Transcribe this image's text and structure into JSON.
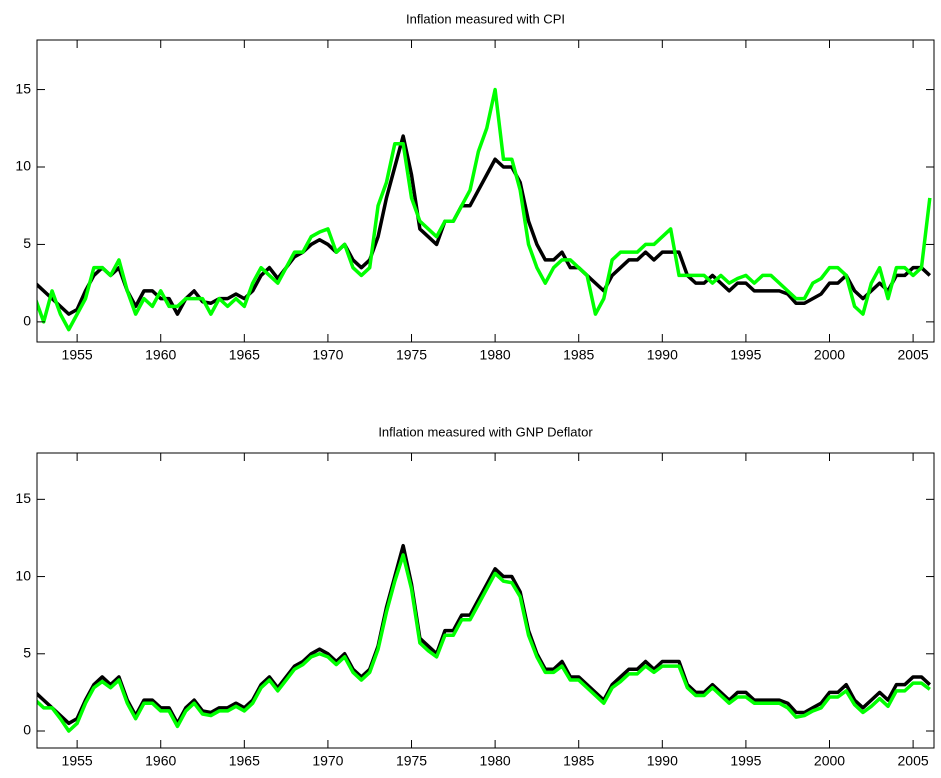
{
  "chart_data": [
    {
      "type": "line",
      "title": "Inflation measured with CPI",
      "x": [
        1952.5,
        1953,
        1953.5,
        1954,
        1954.5,
        1955,
        1955.5,
        1956,
        1956.5,
        1957,
        1957.5,
        1958,
        1958.5,
        1959,
        1959.5,
        1960,
        1960.5,
        1961,
        1961.5,
        1962,
        1962.5,
        1963,
        1963.5,
        1964,
        1964.5,
        1965,
        1965.5,
        1966,
        1966.5,
        1967,
        1967.5,
        1968,
        1968.5,
        1969,
        1969.5,
        1970,
        1970.5,
        1971,
        1971.5,
        1972,
        1972.5,
        1973,
        1973.5,
        1974,
        1974.5,
        1975,
        1975.5,
        1976,
        1976.5,
        1977,
        1977.5,
        1978,
        1978.5,
        1979,
        1979.5,
        1980,
        1980.5,
        1981,
        1981.5,
        1982,
        1982.5,
        1983,
        1983.5,
        1984,
        1984.5,
        1985,
        1985.5,
        1986,
        1986.5,
        1987,
        1987.5,
        1988,
        1988.5,
        1989,
        1989.5,
        1990,
        1990.5,
        1991,
        1991.5,
        1992,
        1992.5,
        1993,
        1993.5,
        1994,
        1994.5,
        1995,
        1995.5,
        1996,
        1996.5,
        1997,
        1997.5,
        1998,
        1998.5,
        1999,
        1999.5,
        2000,
        2000.5,
        2001,
        2001.5,
        2002,
        2002.5,
        2003,
        2003.5,
        2004,
        2004.5,
        2005,
        2005.5,
        2006
      ],
      "series": [
        {
          "color": "#000000",
          "values": [
            2.5,
            2.0,
            1.5,
            1.0,
            0.5,
            0.8,
            2.0,
            3.0,
            3.5,
            3.0,
            3.5,
            2.0,
            1.0,
            2.0,
            2.0,
            1.5,
            1.5,
            0.5,
            1.5,
            2.0,
            1.3,
            1.2,
            1.5,
            1.5,
            1.8,
            1.5,
            2.0,
            3.0,
            3.5,
            2.8,
            3.5,
            4.2,
            4.5,
            5.0,
            5.3,
            5.0,
            4.5,
            5.0,
            4.0,
            3.5,
            4.0,
            5.5,
            8.0,
            10.0,
            12.0,
            9.5,
            6.0,
            5.5,
            5.0,
            6.5,
            6.5,
            7.5,
            7.5,
            8.5,
            9.5,
            10.5,
            10.0,
            10.0,
            9.0,
            6.5,
            5.0,
            4.0,
            4.0,
            4.5,
            3.5,
            3.5,
            3.0,
            2.5,
            2.0,
            3.0,
            3.5,
            4.0,
            4.0,
            4.5,
            4.0,
            4.5,
            4.5,
            4.5,
            3.0,
            2.5,
            2.5,
            3.0,
            2.5,
            2.0,
            2.5,
            2.5,
            2.0,
            2.0,
            2.0,
            2.0,
            1.8,
            1.2,
            1.2,
            1.5,
            1.8,
            2.5,
            2.5,
            3.0,
            2.0,
            1.5,
            2.0,
            2.5,
            2.0,
            3.0,
            3.0,
            3.5,
            3.5,
            3.0
          ]
        },
        {
          "color": "#00ff00",
          "values": [
            1.5,
            0.0,
            2.0,
            0.5,
            -0.5,
            0.5,
            1.5,
            3.5,
            3.5,
            3.0,
            4.0,
            2.0,
            0.5,
            1.5,
            1.0,
            2.0,
            1.0,
            1.0,
            1.5,
            1.5,
            1.5,
            0.5,
            1.5,
            1.0,
            1.5,
            1.0,
            2.5,
            3.5,
            3.0,
            2.5,
            3.5,
            4.5,
            4.5,
            5.5,
            5.8,
            6.0,
            4.5,
            5.0,
            3.5,
            3.0,
            3.5,
            7.5,
            9.0,
            11.5,
            11.5,
            8.0,
            6.5,
            6.0,
            5.5,
            6.5,
            6.5,
            7.5,
            8.5,
            11.0,
            12.5,
            15.0,
            10.5,
            10.5,
            8.5,
            5.0,
            3.5,
            2.5,
            3.5,
            4.0,
            4.0,
            3.5,
            3.0,
            0.5,
            1.5,
            4.0,
            4.5,
            4.5,
            4.5,
            5.0,
            5.0,
            5.5,
            6.0,
            3.0,
            3.0,
            3.0,
            3.0,
            2.5,
            3.0,
            2.5,
            2.8,
            3.0,
            2.5,
            3.0,
            3.0,
            2.5,
            2.0,
            1.5,
            1.5,
            2.5,
            2.8,
            3.5,
            3.5,
            3.0,
            1.0,
            0.5,
            2.5,
            3.5,
            1.5,
            3.5,
            3.5,
            3.0,
            3.5,
            8.0
          ]
        }
      ],
      "xlim": [
        1952.6,
        2006.25
      ],
      "xticks": [
        1955,
        1960,
        1965,
        1970,
        1975,
        1980,
        1985,
        1990,
        1995,
        2000,
        2005
      ],
      "ylim": [
        -1.3,
        18.2
      ],
      "yticks": [
        0,
        5,
        10,
        15
      ],
      "grid": false
    },
    {
      "type": "line",
      "title": "Inflation measured with GNP Deflator",
      "x": [
        1952.5,
        1953,
        1953.5,
        1954,
        1954.5,
        1955,
        1955.5,
        1956,
        1956.5,
        1957,
        1957.5,
        1958,
        1958.5,
        1959,
        1959.5,
        1960,
        1960.5,
        1961,
        1961.5,
        1962,
        1962.5,
        1963,
        1963.5,
        1964,
        1964.5,
        1965,
        1965.5,
        1966,
        1966.5,
        1967,
        1967.5,
        1968,
        1968.5,
        1969,
        1969.5,
        1970,
        1970.5,
        1971,
        1971.5,
        1972,
        1972.5,
        1973,
        1973.5,
        1974,
        1974.5,
        1975,
        1975.5,
        1976,
        1976.5,
        1977,
        1977.5,
        1978,
        1978.5,
        1979,
        1979.5,
        1980,
        1980.5,
        1981,
        1981.5,
        1982,
        1982.5,
        1983,
        1983.5,
        1984,
        1984.5,
        1985,
        1985.5,
        1986,
        1986.5,
        1987,
        1987.5,
        1988,
        1988.5,
        1989,
        1989.5,
        1990,
        1990.5,
        1991,
        1991.5,
        1992,
        1992.5,
        1993,
        1993.5,
        1994,
        1994.5,
        1995,
        1995.5,
        1996,
        1996.5,
        1997,
        1997.5,
        1998,
        1998.5,
        1999,
        1999.5,
        2000,
        2000.5,
        2001,
        2001.5,
        2002,
        2002.5,
        2003,
        2003.5,
        2004,
        2004.5,
        2005,
        2005.5,
        2006
      ],
      "series": [
        {
          "color": "#000000",
          "values": [
            2.5,
            2.0,
            1.5,
            1.0,
            0.5,
            0.8,
            2.0,
            3.0,
            3.5,
            3.0,
            3.5,
            2.0,
            1.0,
            2.0,
            2.0,
            1.5,
            1.5,
            0.5,
            1.5,
            2.0,
            1.3,
            1.2,
            1.5,
            1.5,
            1.8,
            1.5,
            2.0,
            3.0,
            3.5,
            2.8,
            3.5,
            4.2,
            4.5,
            5.0,
            5.3,
            5.0,
            4.5,
            5.0,
            4.0,
            3.5,
            4.0,
            5.5,
            8.0,
            10.0,
            12.0,
            9.5,
            6.0,
            5.5,
            5.0,
            6.5,
            6.5,
            7.5,
            7.5,
            8.5,
            9.5,
            10.5,
            10.0,
            10.0,
            9.0,
            6.5,
            5.0,
            4.0,
            4.0,
            4.5,
            3.5,
            3.5,
            3.0,
            2.5,
            2.0,
            3.0,
            3.5,
            4.0,
            4.0,
            4.5,
            4.0,
            4.5,
            4.5,
            4.5,
            3.0,
            2.5,
            2.5,
            3.0,
            2.5,
            2.0,
            2.5,
            2.5,
            2.0,
            2.0,
            2.0,
            2.0,
            1.8,
            1.2,
            1.2,
            1.5,
            1.8,
            2.5,
            2.5,
            3.0,
            2.0,
            1.5,
            2.0,
            2.5,
            2.0,
            3.0,
            3.0,
            3.5,
            3.5,
            3.0
          ]
        },
        {
          "color": "#00ff00",
          "values": [
            2.0,
            1.5,
            1.5,
            0.8,
            0.0,
            0.5,
            1.8,
            2.8,
            3.2,
            2.8,
            3.3,
            1.8,
            0.8,
            1.8,
            1.8,
            1.3,
            1.3,
            0.3,
            1.3,
            1.8,
            1.1,
            1.0,
            1.3,
            1.3,
            1.6,
            1.3,
            1.8,
            2.8,
            3.3,
            2.6,
            3.3,
            4.0,
            4.3,
            4.8,
            5.0,
            4.8,
            4.3,
            4.8,
            3.8,
            3.3,
            3.8,
            5.3,
            7.7,
            9.7,
            11.4,
            9.2,
            5.7,
            5.2,
            4.8,
            6.2,
            6.2,
            7.2,
            7.2,
            8.2,
            9.2,
            10.2,
            9.7,
            9.6,
            8.7,
            6.2,
            4.8,
            3.8,
            3.8,
            4.2,
            3.3,
            3.3,
            2.8,
            2.3,
            1.8,
            2.8,
            3.2,
            3.7,
            3.7,
            4.2,
            3.8,
            4.2,
            4.2,
            4.2,
            2.8,
            2.3,
            2.3,
            2.8,
            2.3,
            1.8,
            2.2,
            2.2,
            1.8,
            1.8,
            1.8,
            1.8,
            1.5,
            0.9,
            1.0,
            1.3,
            1.5,
            2.2,
            2.2,
            2.6,
            1.7,
            1.2,
            1.6,
            2.1,
            1.6,
            2.6,
            2.6,
            3.1,
            3.1,
            2.7
          ]
        }
      ],
      "xlim": [
        1952.6,
        2006.25
      ],
      "xticks": [
        1955,
        1960,
        1965,
        1970,
        1975,
        1980,
        1985,
        1990,
        1995,
        2000,
        2005
      ],
      "ylim": [
        -1.1,
        18.0
      ],
      "yticks": [
        0,
        5,
        10,
        15
      ],
      "grid": false
    }
  ]
}
